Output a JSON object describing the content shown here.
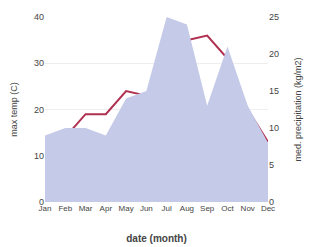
{
  "chart_data": {
    "type": "line",
    "xlabel": "date (month)",
    "ylabel": "max temp (C)",
    "y2label": "med. precipitation (kg/m2)",
    "categories": [
      "Jan",
      "Feb",
      "Mar",
      "Apr",
      "May",
      "Jun",
      "Jul",
      "Aug",
      "Sep",
      "Oct",
      "Nov",
      "Dec"
    ],
    "series": [
      {
        "type": "area",
        "axis": "y2",
        "color": "#c5cae8",
        "values": [
          9,
          10,
          10,
          9,
          14,
          15,
          25,
          24,
          13,
          21,
          13,
          8
        ]
      },
      {
        "type": "line",
        "color": "#b03050",
        "values": [
          9,
          14,
          19,
          19,
          24,
          23,
          35,
          35,
          36,
          31,
          20,
          13
        ]
      }
    ],
    "ylim": [
      0,
      40
    ],
    "yticks": [
      0,
      10,
      20,
      30,
      40
    ],
    "y2lim": [
      0,
      25
    ],
    "y2ticks": [
      0,
      5,
      10,
      15,
      20,
      25
    ],
    "grid": true
  }
}
